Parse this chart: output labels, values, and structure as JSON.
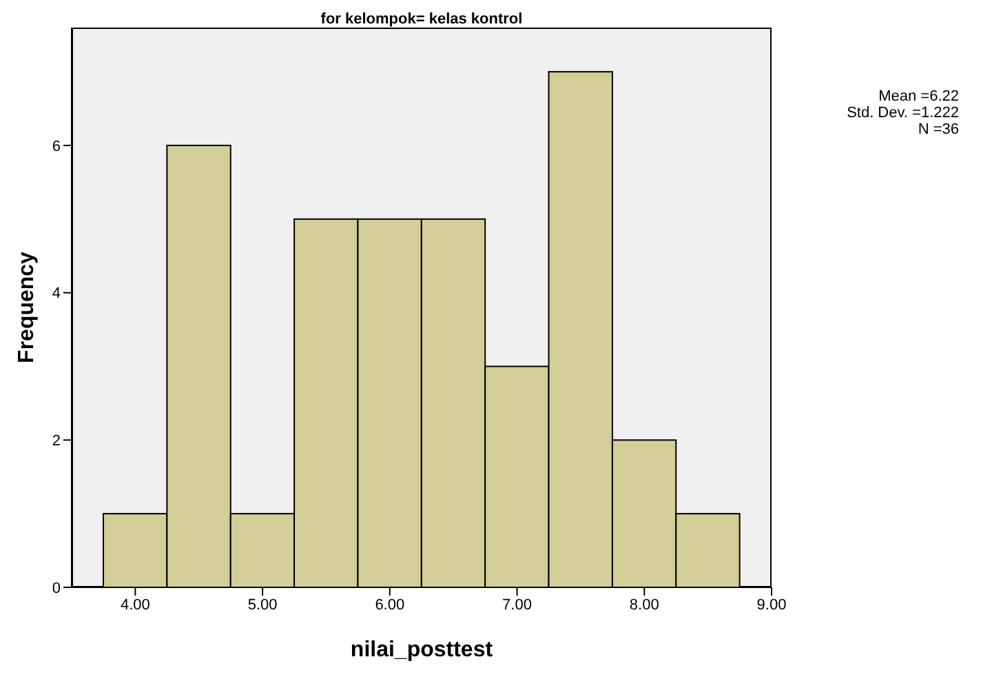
{
  "chart_data": {
    "type": "histogram",
    "title": "for kelompok= kelas kontrol",
    "xlabel": "nilai_posttest",
    "ylabel": "Frequency",
    "bins": [
      3.75,
      4.25,
      4.75,
      5.25,
      5.75,
      6.25,
      6.75,
      7.25,
      7.75,
      8.25,
      8.75
    ],
    "values": [
      1,
      6,
      1,
      5,
      5,
      5,
      3,
      7,
      2,
      1
    ],
    "color": "#d3ce97",
    "xlim": [
      3.5,
      9.0
    ],
    "xticks": [
      {
        "value": 4,
        "label": "4.00"
      },
      {
        "value": 5,
        "label": "5.00"
      },
      {
        "value": 6,
        "label": "6.00"
      },
      {
        "value": 7,
        "label": "7.00"
      },
      {
        "value": 8,
        "label": "8.00"
      },
      {
        "value": 9,
        "label": "9.00"
      }
    ],
    "ylim": [
      0,
      7.6
    ],
    "yticks": [
      0,
      2,
      4,
      6
    ],
    "annotations": [
      "Mean =6.22",
      "Std. Dev. =1.222",
      "N =36"
    ]
  }
}
